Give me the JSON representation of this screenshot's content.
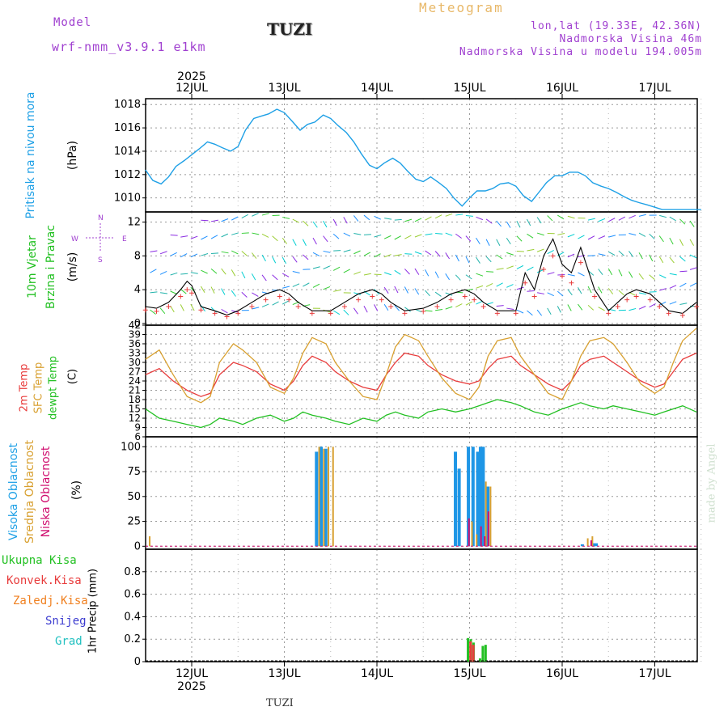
{
  "header": {
    "model_label": "Model",
    "model_name": "wrf-nmm_v3.9.1 e1km",
    "title": "TUZI",
    "subtitle": "Meteogram",
    "coords": "lon,lat (19.33E, 42.36N)",
    "elevation": "Nadmorska Visina 46m",
    "elevation_model": "Nadmorska Visina u modelu 194.005m"
  },
  "footer": {
    "station": "TUZI",
    "watermark": "made by Angel"
  },
  "colors": {
    "pressure": "#1ea0e6",
    "t2m": "#e83c3c",
    "sfc": "#d8a030",
    "dewpt": "#22c022",
    "cloud_high": "#1e96e6",
    "cloud_mid": "#d8a030",
    "cloud_low": "#d01070",
    "precip_total": "#22c022",
    "precip_conv": "#e83c3c",
    "precip_frozen": "#f08020",
    "snow": "#3c3cd0",
    "grad": "#20c0c0",
    "purple": "#a040d0"
  },
  "chart_data": [
    {
      "type": "line",
      "id": "pressure",
      "year": "2025",
      "date_ticks": [
        "12JUL",
        "13JUL",
        "14JUL",
        "15JUL",
        "16JUL",
        "17JUL"
      ],
      "ylabel_main": "Pritisak na nivou mora",
      "ylabel_unit": "(hPa)",
      "ylim": [
        1008.8,
        1018.5
      ],
      "yticks": [
        1010,
        1012,
        1014,
        1016,
        1018
      ],
      "grid": true,
      "series": [
        {
          "x_days": [
            0.0,
            0.08,
            0.17,
            0.25,
            0.33,
            0.42,
            0.5,
            0.58,
            0.67,
            0.75,
            0.83,
            0.92,
            1.0,
            1.08,
            1.17,
            1.25,
            1.33,
            1.42,
            1.5,
            1.58,
            1.67,
            1.75,
            1.83,
            1.92,
            2.0,
            2.08,
            2.17,
            2.25,
            2.33,
            2.42,
            2.5,
            2.58,
            2.67,
            2.75,
            2.83,
            2.92,
            3.0,
            3.08,
            3.17,
            3.25,
            3.33,
            3.42,
            3.5,
            3.58,
            3.67,
            3.75,
            3.83,
            3.92,
            4.0,
            4.08,
            4.17,
            4.25,
            4.33,
            4.42,
            4.5,
            4.58,
            4.67,
            4.75,
            4.83,
            4.92,
            5.0,
            5.08,
            5.17,
            5.25,
            5.33,
            5.42,
            5.5,
            5.58,
            5.67,
            5.75,
            5.83,
            5.92,
            6.0
          ],
          "values": [
            1012.4,
            1011.5,
            1011.2,
            1011.8,
            1012.7,
            1013.2,
            1013.7,
            1014.2,
            1014.8,
            1014.6,
            1014.3,
            1014.0,
            1014.4,
            1015.8,
            1016.8,
            1017.0,
            1017.2,
            1017.6,
            1017.3,
            1016.6,
            1015.8,
            1016.3,
            1016.5,
            1017.1,
            1016.8,
            1016.2,
            1015.6,
            1014.8,
            1013.8,
            1012.8,
            1012.5,
            1013.0,
            1013.4,
            1013.0,
            1012.3,
            1011.6,
            1011.4,
            1011.8,
            1011.3,
            1010.8,
            1010.0,
            1009.3,
            1010.0,
            1010.6,
            1010.6,
            1010.8,
            1011.2,
            1011.3,
            1011.0,
            1010.2,
            1009.7,
            1010.5,
            1011.3,
            1011.9,
            1011.9,
            1012.2,
            1012.2,
            1011.9,
            1011.3,
            1011.0,
            1010.8,
            1010.5,
            1010.1,
            1009.8,
            1009.6,
            1009.4,
            1009.2,
            1009.0,
            1009.0,
            1009.0,
            1009.0,
            1009.0,
            1009.0
          ]
        }
      ]
    },
    {
      "type": "line",
      "id": "wind",
      "ylabel_main": "10m Vjetar",
      "ylabel_sub": "Brzina i Pravac",
      "ylabel_unit": "(m/s)",
      "compass": {
        "n": "N",
        "e": "E",
        "w": "W",
        "s": "S"
      },
      "ylim": [
        -0.2,
        13.2
      ],
      "yticks": [
        0,
        4,
        8,
        12
      ],
      "grid": true,
      "series": [
        {
          "x_days": [
            0.0,
            0.12,
            0.25,
            0.38,
            0.45,
            0.5,
            0.6,
            0.75,
            0.88,
            1.0,
            1.15,
            1.3,
            1.45,
            1.55,
            1.65,
            1.8,
            2.0,
            2.15,
            2.3,
            2.45,
            2.55,
            2.65,
            2.8,
            3.0,
            3.15,
            3.3,
            3.45,
            3.55,
            3.65,
            3.8,
            4.0,
            4.1,
            4.2,
            4.3,
            4.4,
            4.5,
            4.6,
            4.7,
            4.85,
            5.0,
            5.1,
            5.2,
            5.3,
            5.45,
            5.55,
            5.65,
            5.8,
            5.95
          ],
          "values": [
            2.0,
            1.8,
            2.5,
            4.0,
            5.0,
            4.5,
            2.0,
            1.5,
            1.0,
            1.5,
            2.5,
            3.5,
            4.0,
            3.5,
            2.5,
            1.5,
            1.5,
            2.5,
            3.5,
            4.0,
            3.5,
            2.5,
            1.5,
            1.8,
            2.5,
            3.5,
            4.0,
            3.5,
            2.5,
            1.5,
            1.5,
            6.0,
            4.0,
            8.0,
            10.0,
            7.0,
            6.0,
            9.0,
            4.0,
            1.5,
            2.5,
            3.5,
            4.0,
            3.5,
            2.5,
            1.5,
            1.2,
            2.5
          ]
        }
      ]
    },
    {
      "type": "line",
      "id": "temperature",
      "ylabel_t2m": "2m Temp",
      "ylabel_sfc": "SFC Temp",
      "ylabel_dew": "dewpt Temp",
      "ylabel_unit": "(C)",
      "ylim": [
        6,
        42
      ],
      "yticks": [
        6,
        9,
        12,
        15,
        18,
        21,
        24,
        27,
        30,
        33,
        36,
        39,
        42
      ],
      "grid": true,
      "series": [
        {
          "name": "2m Temp",
          "x_days": [
            0.0,
            0.15,
            0.3,
            0.45,
            0.6,
            0.7,
            0.8,
            0.95,
            1.05,
            1.2,
            1.35,
            1.5,
            1.6,
            1.7,
            1.8,
            1.95,
            2.05,
            2.2,
            2.35,
            2.5,
            2.6,
            2.7,
            2.8,
            2.95,
            3.05,
            3.2,
            3.35,
            3.5,
            3.6,
            3.7,
            3.8,
            3.95,
            4.05,
            4.2,
            4.35,
            4.5,
            4.6,
            4.7,
            4.8,
            4.95,
            5.05,
            5.2,
            5.35,
            5.5,
            5.6,
            5.7,
            5.8,
            5.95
          ],
          "values": [
            26,
            28,
            24,
            21,
            19,
            20,
            26,
            30,
            29,
            27,
            23,
            21,
            24,
            29,
            32,
            30,
            27,
            24,
            22,
            21,
            26,
            30,
            33,
            32,
            29,
            26,
            24,
            23,
            24,
            28,
            31,
            32,
            29,
            26,
            23,
            21,
            24,
            29,
            31,
            32,
            30,
            27,
            24,
            22,
            23,
            27,
            31,
            33
          ]
        },
        {
          "name": "SFC Temp",
          "x_days": [
            0.0,
            0.15,
            0.3,
            0.45,
            0.6,
            0.7,
            0.8,
            0.95,
            1.05,
            1.2,
            1.35,
            1.5,
            1.6,
            1.7,
            1.8,
            1.95,
            2.05,
            2.2,
            2.35,
            2.5,
            2.6,
            2.7,
            2.8,
            2.95,
            3.05,
            3.2,
            3.35,
            3.5,
            3.6,
            3.7,
            3.8,
            3.95,
            4.05,
            4.2,
            4.35,
            4.5,
            4.6,
            4.7,
            4.8,
            4.95,
            5.05,
            5.2,
            5.35,
            5.5,
            5.6,
            5.7,
            5.8,
            5.95
          ],
          "values": [
            31,
            34,
            26,
            19,
            17,
            19,
            30,
            36,
            34,
            30,
            22,
            20,
            25,
            33,
            38,
            36,
            30,
            24,
            19,
            18,
            26,
            35,
            39,
            37,
            32,
            25,
            20,
            18,
            22,
            32,
            37,
            38,
            32,
            26,
            20,
            18,
            24,
            32,
            37,
            38,
            36,
            30,
            23,
            20,
            22,
            30,
            37,
            41
          ]
        },
        {
          "name": "dewpt Temp",
          "x_days": [
            0.0,
            0.15,
            0.3,
            0.45,
            0.6,
            0.7,
            0.8,
            0.95,
            1.05,
            1.2,
            1.35,
            1.5,
            1.6,
            1.7,
            1.8,
            1.95,
            2.05,
            2.2,
            2.35,
            2.5,
            2.6,
            2.7,
            2.8,
            2.95,
            3.05,
            3.2,
            3.35,
            3.5,
            3.6,
            3.7,
            3.8,
            3.95,
            4.05,
            4.2,
            4.35,
            4.5,
            4.6,
            4.7,
            4.8,
            4.95,
            5.05,
            5.2,
            5.35,
            5.5,
            5.6,
            5.7,
            5.8,
            5.95
          ],
          "values": [
            15,
            12,
            11,
            10,
            9,
            10,
            12,
            11,
            10,
            12,
            13,
            11,
            12,
            14,
            13,
            12,
            11,
            10,
            12,
            11,
            13,
            14,
            13,
            12,
            14,
            15,
            14,
            15,
            16,
            17,
            18,
            17,
            16,
            14,
            13,
            15,
            16,
            17,
            16,
            15,
            16,
            15,
            14,
            13,
            14,
            15,
            16,
            14
          ]
        }
      ]
    },
    {
      "type": "bar",
      "id": "clouds",
      "ylabel_high": "Visoka Oblacnost",
      "ylabel_mid": "Srednja Oblacnost",
      "ylabel_low": "Niska Oblacnost",
      "ylabel_unit": "(%)",
      "ylim": [
        -3,
        110
      ],
      "yticks": [
        0,
        25,
        50,
        75,
        100
      ],
      "grid": true,
      "series": [
        {
          "name": "Visoka Oblacnost",
          "x_days": [
            1.83,
            1.88,
            1.93,
            3.33,
            3.37,
            3.47,
            3.52,
            3.57,
            3.6,
            3.63,
            3.68,
            4.7,
            4.82,
            4.85
          ],
          "values": [
            95,
            100,
            98,
            95,
            78,
            100,
            100,
            95,
            100,
            100,
            60,
            2,
            3,
            3
          ]
        },
        {
          "name": "Srednja Oblacnost",
          "x_days": [
            0.02,
            1.85,
            1.9,
            1.95,
            2.0,
            3.5,
            3.55,
            3.65,
            3.7,
            4.75,
            4.8
          ],
          "values": [
            10,
            100,
            98,
            100,
            100,
            25,
            12,
            65,
            60,
            8,
            10
          ]
        },
        {
          "name": "Niska Oblacnost",
          "x_days": [
            3.45,
            3.58,
            3.62,
            3.66,
            4.77
          ],
          "values": [
            28,
            20,
            10,
            35,
            6
          ]
        }
      ]
    },
    {
      "type": "bar",
      "id": "precip",
      "legend": [
        "Ukupna Kisa",
        "Konvek.Kisa",
        "Zaledj.Kisa",
        "Snijeg",
        "Grad"
      ],
      "ylabel": "1hr Precip (mm)",
      "ylim": [
        0,
        1.0
      ],
      "yticks": [
        0,
        0.2,
        0.4,
        0.6,
        0.8
      ],
      "grid": true,
      "series": [
        {
          "name": "Ukupna Kisa",
          "x_days": [
            3.47,
            3.5,
            3.53,
            3.6,
            3.63,
            3.66
          ],
          "values": [
            0.21,
            0.2,
            0.17,
            0.03,
            0.14,
            0.15
          ]
        },
        {
          "name": "Konvek.Kisa",
          "x_days": [
            3.48,
            3.51
          ],
          "values": [
            0.18,
            0.15
          ]
        }
      ]
    }
  ]
}
